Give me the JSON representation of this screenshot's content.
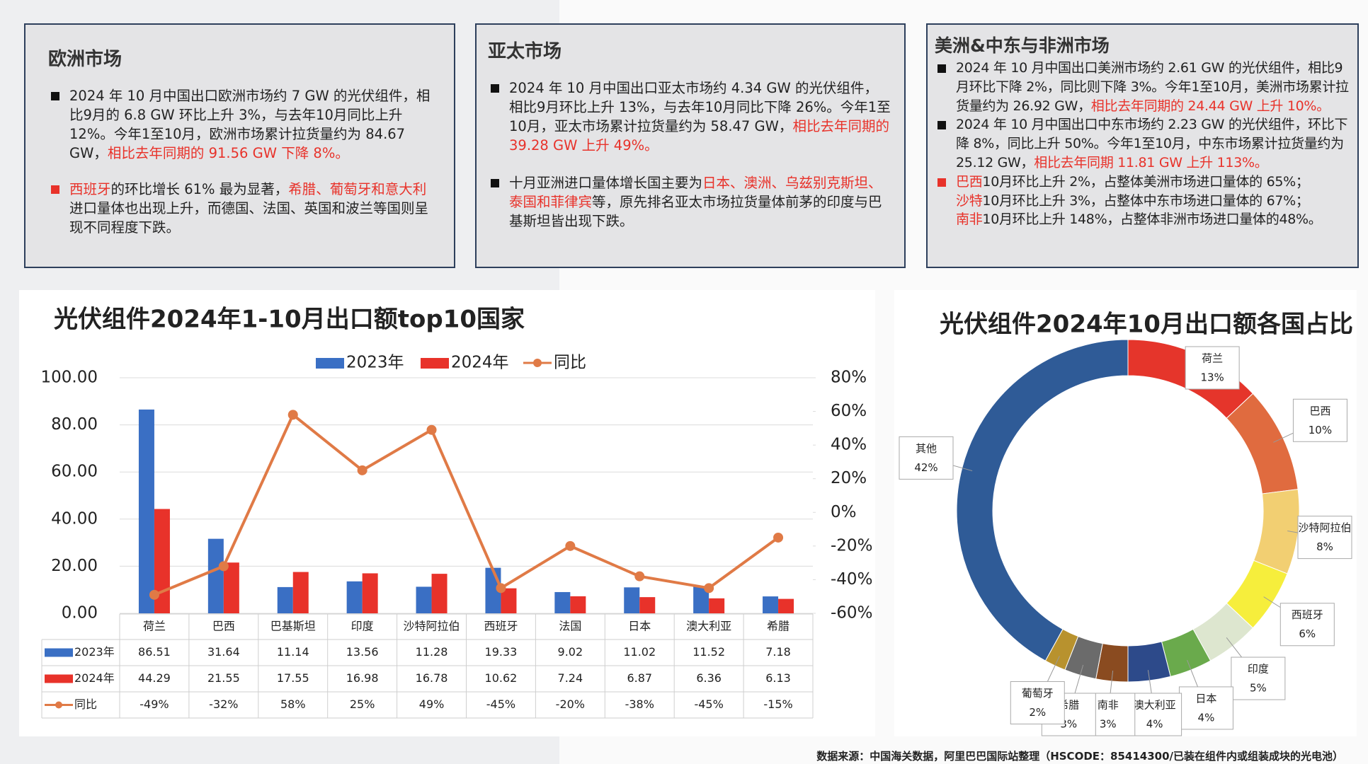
{
  "panels": [
    {
      "title": "欧洲市场",
      "paragraphs": [
        {
          "marker": "#111111",
          "lines": [
            [
              {
                "text": "2024 年 10 月中国出口欧洲市场约 7 GW 的光伏组件，相比9月的 6.8 GW 环比上升 3%，与去年10月同比上升 12%。今年1至10月，欧洲市场累计拉货量约为 84.67 GW，"
              },
              {
                "text": "相比去年同期的 91.56 GW 下降 8%。",
                "emphasis": true
              }
            ]
          ]
        },
        {
          "marker": "#e8322a",
          "lines": [
            [
              {
                "text": "西班牙",
                "emphasis": true
              },
              {
                "text": "的环比增长 61% 最为显著，"
              },
              {
                "text": "希腊、葡萄牙和意大利",
                "emphasis": true
              },
              {
                "text": "进口量体也出现上升，而德国、法国、英国和波兰等国则呈现不同程度下跌。"
              }
            ]
          ]
        }
      ]
    },
    {
      "title": "亚太市场",
      "paragraphs": [
        {
          "marker": "#111111",
          "lines": [
            [
              {
                "text": "2024 年 10 月中国出口亚太市场约 4.34 GW 的光伏组件，相比9月环比上升 13%，与去年10月同比下降 26%。今年1至10月，亚太市场累计拉货量约为 58.47 GW，"
              },
              {
                "text": "相比去年同期的 39.28 GW 上升 49%。",
                "emphasis": true
              }
            ]
          ]
        },
        {
          "marker": "#111111",
          "lines": [
            [
              {
                "text": "十月亚洲进口量体增长国主要为"
              },
              {
                "text": "日本、澳洲、乌兹别克斯坦、泰国和菲律宾",
                "emphasis": true
              },
              {
                "text": "等，原先排名亚太市场拉货量体前茅的印度与巴基斯坦皆出现下跌。"
              }
            ]
          ]
        }
      ]
    },
    {
      "title": "美洲&中东与非洲市场",
      "paragraphs": [
        {
          "marker": "#111111",
          "lines": [
            [
              {
                "text": "2024 年 10 月中国出口美洲市场约 2.61 GW 的光伏组件，相比9月环比下降 2%，同比则下降 3%。今年1至10月，美洲市场累计拉货量约为 26.92 GW，"
              },
              {
                "text": "相比去年同期的 24.44 GW 上升 10%。",
                "emphasis": true
              }
            ]
          ]
        },
        {
          "marker": "#111111",
          "lines": [
            [
              {
                "text": "2024 年 10 月中国出口中东市场约 2.23 GW 的光伏组件，环比下降 8%，同比上升 50%。今年1至10月，中东市场累计拉货量约为 25.12 GW，"
              },
              {
                "text": "相比去年同期 11.81 GW 上升 113%。",
                "emphasis": true
              }
            ]
          ]
        },
        {
          "marker": "#e8322a",
          "lines": [
            [
              {
                "text": "巴西",
                "emphasis": true
              },
              {
                "text": "10月环比上升 2%，占整体美洲市场进口量体的 65%；"
              }
            ],
            [
              {
                "text": "沙特",
                "emphasis": true
              },
              {
                "text": "10月环比上升 3%，占整体中东市场进口量体的 67%；"
              }
            ],
            [
              {
                "text": "南非",
                "emphasis": true
              },
              {
                "text": "10月环比上升 148%，占整体非洲市场进口量体的48%。"
              }
            ]
          ]
        }
      ]
    }
  ],
  "chart_data": [
    {
      "type": "bar",
      "title": "光伏组件2024年1-10月出口额top10国家",
      "categories": [
        "荷兰",
        "巴西",
        "巴基斯坦",
        "印度",
        "沙特阿拉伯",
        "西班牙",
        "法国",
        "日本",
        "澳大利亚",
        "希腊"
      ],
      "series": [
        {
          "name": "2023年",
          "color": "#3a6fc4",
          "values": [
            86.51,
            31.64,
            11.14,
            13.56,
            11.28,
            19.33,
            9.02,
            11.02,
            11.52,
            7.18
          ]
        },
        {
          "name": "2024年",
          "color": "#e8322a",
          "values": [
            44.29,
            21.55,
            17.55,
            16.98,
            16.78,
            10.62,
            7.24,
            6.87,
            6.36,
            6.13
          ]
        },
        {
          "name": "同比",
          "type": "line",
          "axis": "y2",
          "color": "#e07a46",
          "values": [
            -49,
            -32,
            58,
            25,
            49,
            -45,
            -20,
            -38,
            -45,
            -15
          ],
          "value_labels": [
            "-49%",
            "-32%",
            "58%",
            "25%",
            "49%",
            "-45%",
            "-20%",
            "-38%",
            "-45%",
            "-15%"
          ]
        }
      ],
      "ylim": [
        0,
        100
      ],
      "yticks": [
        {
          "value": 0,
          "label": "0.00"
        },
        {
          "value": 20,
          "label": "20.00"
        },
        {
          "value": 40,
          "label": "40.00"
        },
        {
          "value": 60,
          "label": "60.00"
        },
        {
          "value": 80,
          "label": "80.00"
        },
        {
          "value": 100,
          "label": "100.00"
        }
      ],
      "y2lim": [
        -60,
        80
      ],
      "y2ticks": [
        {
          "value": -60,
          "label": "-60%"
        },
        {
          "value": -40,
          "label": "-40%"
        },
        {
          "value": -20,
          "label": "-20%"
        },
        {
          "value": 0,
          "label": "0%"
        },
        {
          "value": 20,
          "label": "20%"
        },
        {
          "value": 40,
          "label": "40%"
        },
        {
          "value": 60,
          "label": "60%"
        },
        {
          "value": 80,
          "label": "80%"
        }
      ],
      "grid": true,
      "legend": "top"
    },
    {
      "type": "pie",
      "title": "光伏组件2024年10月出口额各国占比",
      "categories": [
        "荷兰",
        "巴西",
        "沙特阿拉伯",
        "西班牙",
        "印度",
        "日本",
        "澳大利亚",
        "南非",
        "希腊",
        "葡萄牙",
        "其他"
      ],
      "values": [
        13,
        10,
        8,
        6,
        5,
        4,
        4,
        3,
        3,
        2,
        42
      ],
      "value_labels": [
        "13%",
        "10%",
        "8%",
        "6%",
        "5%",
        "4%",
        "4%",
        "3%",
        "3%",
        "2%",
        "42%"
      ],
      "colors": [
        "#e5352b",
        "#e06b3f",
        "#f2cf72",
        "#f6ee3c",
        "#dde6cf",
        "#6aaa4c",
        "#2d4a8a",
        "#8a4b20",
        "#6b6b6b",
        "#b8922e",
        "#2f5b97"
      ]
    }
  ],
  "source": "数据来源：中国海关数据，阿里巴巴国际站整理（HSCODE：85414300/已装在组件内或组装成块的光电池）"
}
